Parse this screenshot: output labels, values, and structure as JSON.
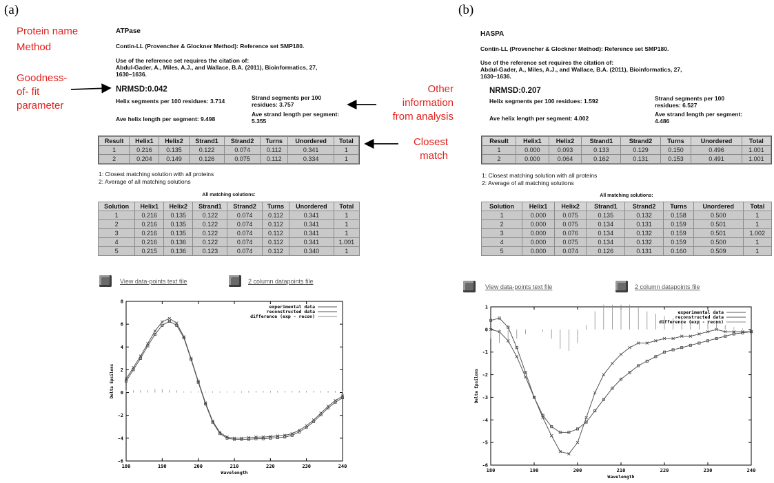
{
  "panels": [
    {
      "label": "(a)",
      "protein_name": "ATPase",
      "method": "Contin-LL (Provencher & Glockner Method):   Reference set SMP180.",
      "citation_lines": [
        "Use of the reference set requires the citation of:",
        "Abdul-Gader, A., Miles, A.J., and Wallace, B.A. (2011), Bioinformatics, 27,",
        "1630–1636."
      ],
      "nrmsd": "NRMSD:0.042",
      "helix_segments": "Helix segments per 100 residues: 3.714",
      "strand_segments_lines": [
        "Strand segments per 100",
        "residues: 3.757"
      ],
      "ave_helix": "Ave helix length per segment: 9.498",
      "ave_strand_lines": [
        "Ave strand length per segment:",
        "5.355"
      ],
      "result_headers": [
        "Result",
        "Helix1",
        "Helix2",
        "Strand1",
        "Strand2",
        "Turns",
        "Unordered",
        "Total"
      ],
      "result_rows": [
        [
          "1",
          "0.216",
          "0.135",
          "0.122",
          "0.074",
          "0.112",
          "0.341",
          "1"
        ],
        [
          "2",
          "0.204",
          "0.149",
          "0.126",
          "0.075",
          "0.112",
          "0.334",
          "1"
        ]
      ],
      "notes": [
        "1: Closest matching solution with all proteins",
        "2: Average of all matching solutions"
      ],
      "all_matching_title": "All matching solutions:",
      "solution_headers": [
        "Solution",
        "Helix1",
        "Helix2",
        "Strand1",
        "Strand2",
        "Turns",
        "Unordered",
        "Total"
      ],
      "solution_rows": [
        [
          "1",
          "0.216",
          "0.135",
          "0.122",
          "0.074",
          "0.112",
          "0.341",
          "1"
        ],
        [
          "2",
          "0.216",
          "0.135",
          "0.122",
          "0.074",
          "0.112",
          "0.341",
          "1"
        ],
        [
          "3",
          "0.216",
          "0.135",
          "0.122",
          "0.074",
          "0.112",
          "0.341",
          "1"
        ],
        [
          "4",
          "0.216",
          "0.136",
          "0.122",
          "0.074",
          "0.112",
          "0.341",
          "1.001"
        ],
        [
          "5",
          "0.215",
          "0.136",
          "0.123",
          "0.074",
          "0.112",
          "0.340",
          "1"
        ]
      ],
      "link_text_file": "View data-points text file",
      "link_two_column": "2 column datapoints file"
    },
    {
      "label": "(b)",
      "protein_name": "HASPA",
      "method": "Contin-LL (Provencher & Glockner Method):   Reference set SMP180.",
      "citation_lines": [
        "Use of the reference set requires the citation of:",
        "Abdul-Gader, A., Miles, A.J., and Wallace, B.A. (2011), Bioinformatics, 27,",
        "1630–1636."
      ],
      "nrmsd": "NRMSD:0.207",
      "helix_segments": "Helix segments per 100 residues: 1.592",
      "strand_segments_lines": [
        "Strand segments per 100",
        "residues: 6.527"
      ],
      "ave_helix": "Ave helix length per segment: 4.002",
      "ave_strand_lines": [
        "Ave strand length per segment:",
        "4.486"
      ],
      "result_headers": [
        "Result",
        "Helix1",
        "Helix2",
        "Strand1",
        "Strand2",
        "Turns",
        "Unordered",
        "Total"
      ],
      "result_rows": [
        [
          "1",
          "0.000",
          "0.093",
          "0.133",
          "0.129",
          "0.150",
          "0.496",
          "1.001"
        ],
        [
          "2",
          "0.000",
          "0.064",
          "0.162",
          "0.131",
          "0.153",
          "0.491",
          "1.001"
        ]
      ],
      "notes": [
        "1: Closest matching solution with all proteins",
        "2: Average of all matching solutions"
      ],
      "all_matching_title": "All matching solutions:",
      "solution_headers": [
        "Solution",
        "Helix1",
        "Helix2",
        "Strand1",
        "Strand2",
        "Turns",
        "Unordered",
        "Total"
      ],
      "solution_rows": [
        [
          "1",
          "0.000",
          "0.075",
          "0.135",
          "0.132",
          "0.158",
          "0.500",
          "1"
        ],
        [
          "2",
          "0.000",
          "0.075",
          "0.134",
          "0.131",
          "0.159",
          "0.501",
          "1"
        ],
        [
          "3",
          "0.000",
          "0.076",
          "0.134",
          "0.132",
          "0.159",
          "0.501",
          "1.002"
        ],
        [
          "4",
          "0.000",
          "0.075",
          "0.134",
          "0.132",
          "0.159",
          "0.500",
          "1"
        ],
        [
          "5",
          "0.000",
          "0.074",
          "0.126",
          "0.131",
          "0.160",
          "0.509",
          "1"
        ]
      ],
      "link_text_file": "View data-points text file",
      "link_two_column": "2 column datapoints file"
    }
  ],
  "annotations": {
    "protein_name": "Protein name",
    "method": "Method",
    "goodness_lines": [
      "Goodness-",
      "of- fit",
      "parameter"
    ],
    "other_info_lines": [
      "Other",
      "information",
      "from analysis"
    ],
    "closest_lines": [
      "Closest",
      "match"
    ],
    "color": "#e0221c"
  },
  "chart_data": [
    {
      "type": "line",
      "xlabel": "Wavelength",
      "ylabel": "Delta Epsilons",
      "xlim": [
        180,
        240
      ],
      "ylim": [
        -6,
        8
      ],
      "xticks": [
        180,
        190,
        200,
        210,
        220,
        230,
        240
      ],
      "yticks": [
        -6,
        -4,
        -2,
        0,
        2,
        4,
        6,
        8
      ],
      "legend": [
        "experimental data",
        "reconstructed data",
        "difference (exp - recon)"
      ],
      "legend_placement": "top-right",
      "series": [
        {
          "name": "experimental data",
          "x": [
            180,
            182,
            184,
            186,
            188,
            190,
            192,
            194,
            196,
            198,
            200,
            202,
            204,
            206,
            208,
            210,
            212,
            214,
            216,
            218,
            220,
            222,
            224,
            226,
            228,
            230,
            232,
            234,
            236,
            238,
            240
          ],
          "values": [
            1.2,
            2.2,
            3.2,
            4.3,
            5.4,
            6.2,
            6.5,
            6.1,
            4.9,
            3.0,
            1.0,
            -0.9,
            -2.5,
            -3.5,
            -3.9,
            -4.0,
            -4.0,
            -3.95,
            -3.9,
            -3.9,
            -3.85,
            -3.8,
            -3.75,
            -3.6,
            -3.3,
            -2.9,
            -2.4,
            -1.8,
            -1.2,
            -0.7,
            -0.3
          ]
        },
        {
          "name": "reconstructed data",
          "x": [
            180,
            182,
            184,
            186,
            188,
            190,
            192,
            194,
            196,
            198,
            200,
            202,
            204,
            206,
            208,
            210,
            212,
            214,
            216,
            218,
            220,
            222,
            224,
            226,
            228,
            230,
            232,
            234,
            236,
            238,
            240
          ],
          "values": [
            1.0,
            2.0,
            3.0,
            4.1,
            5.1,
            5.9,
            6.25,
            5.9,
            4.8,
            2.9,
            0.9,
            -1.0,
            -2.6,
            -3.6,
            -4.0,
            -4.1,
            -4.1,
            -4.1,
            -4.05,
            -4.05,
            -4.0,
            -3.95,
            -3.9,
            -3.75,
            -3.45,
            -3.05,
            -2.55,
            -1.95,
            -1.35,
            -0.85,
            -0.45
          ]
        },
        {
          "name": "difference (exp - recon)",
          "x": [
            180,
            182,
            184,
            186,
            188,
            190,
            192,
            194,
            196,
            198,
            200,
            202,
            204,
            206,
            208,
            210,
            212,
            214,
            216,
            218,
            220,
            222,
            224,
            226,
            228,
            230,
            232,
            234,
            236,
            238,
            240
          ],
          "values": [
            0.2,
            0.2,
            0.2,
            0.2,
            0.3,
            0.3,
            0.25,
            0.2,
            0.1,
            0.1,
            0.1,
            0.1,
            0.1,
            0.1,
            0.1,
            0.1,
            0.1,
            0.15,
            0.15,
            0.15,
            0.15,
            0.15,
            0.15,
            0.15,
            0.15,
            0.15,
            0.15,
            0.15,
            0.15,
            0.15,
            0.15
          ]
        }
      ]
    },
    {
      "type": "line",
      "xlabel": "Wavelength",
      "ylabel": "Delta Epsilons",
      "xlim": [
        180,
        240
      ],
      "ylim": [
        -6,
        1
      ],
      "xticks": [
        180,
        190,
        200,
        210,
        220,
        230,
        240
      ],
      "yticks": [
        -6,
        -5,
        -4,
        -3,
        -2,
        -1,
        0,
        1
      ],
      "legend": [
        "experimental data",
        "reconstructed data",
        "difference (exp - recon)"
      ],
      "legend_placement": "top-right",
      "series": [
        {
          "name": "experimental data",
          "x": [
            180,
            182,
            184,
            186,
            188,
            190,
            192,
            194,
            196,
            198,
            200,
            202,
            204,
            206,
            208,
            210,
            212,
            214,
            216,
            218,
            220,
            222,
            224,
            226,
            228,
            230,
            232,
            234,
            236,
            238,
            240
          ],
          "values": [
            0.0,
            -0.1,
            -0.5,
            -1.2,
            -2.1,
            -3.0,
            -3.9,
            -4.7,
            -5.4,
            -5.5,
            -5.0,
            -3.9,
            -2.8,
            -2.0,
            -1.5,
            -1.1,
            -0.8,
            -0.6,
            -0.6,
            -0.5,
            -0.4,
            -0.4,
            -0.3,
            -0.3,
            -0.2,
            -0.1,
            0.0,
            -0.1,
            -0.1,
            -0.1,
            -0.1
          ]
        },
        {
          "name": "reconstructed data",
          "x": [
            180,
            182,
            184,
            186,
            188,
            190,
            192,
            194,
            196,
            198,
            200,
            202,
            204,
            206,
            208,
            210,
            212,
            214,
            216,
            218,
            220,
            222,
            224,
            226,
            228,
            230,
            232,
            234,
            236,
            238,
            240
          ],
          "values": [
            0.4,
            0.5,
            0.1,
            -0.8,
            -1.9,
            -3.0,
            -3.8,
            -4.3,
            -4.55,
            -4.55,
            -4.4,
            -4.1,
            -3.6,
            -3.1,
            -2.6,
            -2.2,
            -1.9,
            -1.6,
            -1.4,
            -1.2,
            -1.0,
            -0.9,
            -0.8,
            -0.7,
            -0.6,
            -0.5,
            -0.4,
            -0.3,
            -0.2,
            -0.15,
            -0.1
          ]
        },
        {
          "name": "difference (exp - recon)",
          "x": [
            180,
            182,
            184,
            186,
            188,
            190,
            192,
            194,
            196,
            198,
            200,
            202,
            204,
            206,
            208,
            210,
            212,
            214,
            216,
            218,
            220,
            222,
            224,
            226,
            228,
            230,
            232,
            234,
            236,
            238,
            240
          ],
          "values": [
            -0.4,
            -0.6,
            -0.6,
            -0.4,
            -0.2,
            0.0,
            -0.1,
            -0.4,
            -0.85,
            -0.95,
            -0.6,
            0.2,
            0.8,
            1.1,
            1.1,
            1.1,
            1.1,
            1.0,
            0.8,
            0.7,
            0.6,
            0.5,
            0.5,
            0.4,
            0.4,
            0.4,
            0.4,
            0.2,
            0.1,
            0.05,
            0.0
          ]
        }
      ]
    }
  ]
}
